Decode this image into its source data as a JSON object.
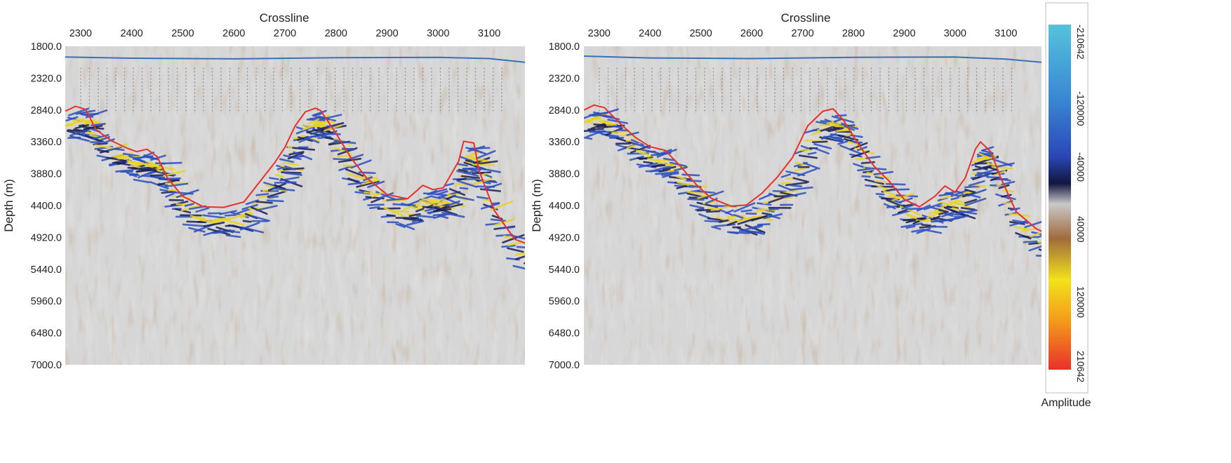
{
  "chart_data": [
    {
      "type": "heatmap",
      "panel": "left",
      "xlabel": "Crossline",
      "ylabel": "Depth (m)",
      "xlim": [
        2270,
        3170
      ],
      "ylim": [
        1800,
        7000
      ],
      "y_axis_inverted": true,
      "x_ticks": [
        "2300",
        "2400",
        "2500",
        "2600",
        "2700",
        "2800",
        "2900",
        "3000",
        "3100"
      ],
      "y_ticks": [
        "1800.0",
        "2320.0",
        "2840.0",
        "3360.0",
        "3880.0",
        "4400.0",
        "4920.0",
        "5440.0",
        "5960.0",
        "6480.0",
        "7000.0"
      ],
      "water_bottom_line": {
        "color": "#3b6fb6",
        "points": [
          [
            2270,
            1975
          ],
          [
            2400,
            1995
          ],
          [
            2600,
            2005
          ],
          [
            2800,
            1985
          ],
          [
            3000,
            1980
          ],
          [
            3100,
            2000
          ],
          [
            3170,
            2060
          ]
        ]
      },
      "salt_boundary_line": {
        "color": "#e8302c",
        "points": [
          [
            2270,
            2860
          ],
          [
            2290,
            2780
          ],
          [
            2310,
            2830
          ],
          [
            2330,
            3160
          ],
          [
            2360,
            3340
          ],
          [
            2390,
            3460
          ],
          [
            2410,
            3520
          ],
          [
            2430,
            3480
          ],
          [
            2450,
            3600
          ],
          [
            2470,
            3950
          ],
          [
            2500,
            4250
          ],
          [
            2540,
            4420
          ],
          [
            2580,
            4430
          ],
          [
            2620,
            4340
          ],
          [
            2650,
            4020
          ],
          [
            2680,
            3700
          ],
          [
            2700,
            3450
          ],
          [
            2720,
            3100
          ],
          [
            2740,
            2870
          ],
          [
            2760,
            2810
          ],
          [
            2770,
            2850
          ],
          [
            2800,
            3220
          ],
          [
            2830,
            3630
          ],
          [
            2860,
            3950
          ],
          [
            2900,
            4220
          ],
          [
            2940,
            4290
          ],
          [
            2970,
            4070
          ],
          [
            2990,
            4140
          ],
          [
            3010,
            4110
          ],
          [
            3040,
            3680
          ],
          [
            3050,
            3350
          ],
          [
            3070,
            3380
          ],
          [
            3080,
            3830
          ],
          [
            3110,
            4480
          ],
          [
            3150,
            4950
          ],
          [
            3200,
            5110
          ],
          [
            3220,
            5170
          ],
          [
            3240,
            5460
          ],
          [
            3270,
            5860
          ],
          [
            3300,
            6060
          ],
          [
            3330,
            6050
          ],
          [
            3360,
            5900
          ],
          [
            3400,
            5500
          ]
        ]
      },
      "colorbar": {
        "label": "Amplitude",
        "ticks": [
          "-210642",
          "-120000",
          "-40000",
          "40000",
          "120000",
          "210642"
        ],
        "colors": [
          "#56c2dc",
          "#2f65c8",
          "#1a1f5c",
          "#bfbfbf",
          "#a06a3c",
          "#f3e21c",
          "#f3a11c",
          "#e8302c"
        ]
      }
    },
    {
      "type": "heatmap",
      "panel": "right",
      "xlabel": "Crossline",
      "ylabel": "Depth (m)",
      "xlim": [
        2270,
        3170
      ],
      "ylim": [
        1800,
        7000
      ],
      "y_axis_inverted": true,
      "x_ticks": [
        "2300",
        "2400",
        "2500",
        "2600",
        "2700",
        "2800",
        "2900",
        "3000",
        "3100"
      ],
      "y_ticks": [
        "1800.0",
        "2320.0",
        "2840.0",
        "3360.0",
        "3880.0",
        "4400.0",
        "4920.0",
        "5440.0",
        "5960.0",
        "6480.0",
        "7000.0"
      ],
      "water_bottom_line": {
        "color": "#3b6fb6",
        "points": [
          [
            2270,
            1960
          ],
          [
            2400,
            1990
          ],
          [
            2600,
            2000
          ],
          [
            2800,
            1980
          ],
          [
            3000,
            1975
          ],
          [
            3100,
            2010
          ],
          [
            3170,
            2060
          ]
        ]
      },
      "salt_boundary_line": {
        "color": "#e8302c",
        "points": [
          [
            2270,
            2840
          ],
          [
            2290,
            2760
          ],
          [
            2310,
            2800
          ],
          [
            2340,
            3050
          ],
          [
            2370,
            3280
          ],
          [
            2400,
            3440
          ],
          [
            2430,
            3500
          ],
          [
            2460,
            3760
          ],
          [
            2490,
            4050
          ],
          [
            2520,
            4280
          ],
          [
            2560,
            4410
          ],
          [
            2590,
            4390
          ],
          [
            2620,
            4200
          ],
          [
            2650,
            3940
          ],
          [
            2680,
            3620
          ],
          [
            2710,
            3100
          ],
          [
            2740,
            2860
          ],
          [
            2760,
            2820
          ],
          [
            2780,
            3000
          ],
          [
            2810,
            3400
          ],
          [
            2840,
            3750
          ],
          [
            2870,
            4000
          ],
          [
            2900,
            4300
          ],
          [
            2930,
            4420
          ],
          [
            2960,
            4250
          ],
          [
            2980,
            4080
          ],
          [
            3000,
            4180
          ],
          [
            3020,
            3950
          ],
          [
            3040,
            3480
          ],
          [
            3050,
            3360
          ],
          [
            3070,
            3520
          ],
          [
            3090,
            3950
          ],
          [
            3120,
            4500
          ],
          [
            3160,
            4780
          ],
          [
            3210,
            4980
          ],
          [
            3250,
            5000
          ],
          [
            3270,
            5090
          ],
          [
            3290,
            5420
          ],
          [
            3320,
            5900
          ],
          [
            3350,
            6040
          ],
          [
            3380,
            6040
          ],
          [
            3400,
            5870
          ],
          [
            3420,
            5750
          ],
          [
            3440,
            5500
          ]
        ]
      },
      "colorbar": {
        "label": "Amplitude",
        "ticks": [
          "-210642",
          "-120000",
          "-40000",
          "40000",
          "120000",
          "210642"
        ],
        "colors": [
          "#56c2dc",
          "#2f65c8",
          "#1a1f5c",
          "#bfbfbf",
          "#a06a3c",
          "#f3e21c",
          "#f3a11c",
          "#e8302c"
        ]
      }
    }
  ]
}
